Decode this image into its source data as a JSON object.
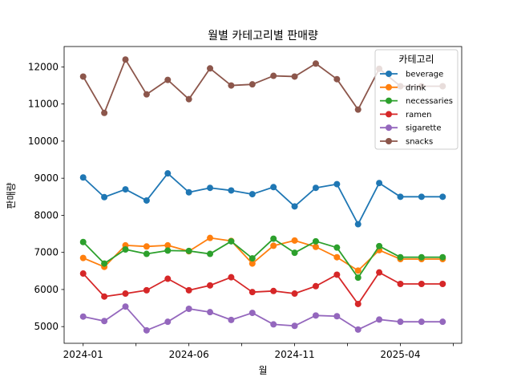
{
  "chart_data": {
    "type": "line",
    "title": "월별 카테고리별 판매량",
    "xlabel": "월",
    "ylabel": "판매량",
    "x": [
      "2024-01",
      "2024-02",
      "2024-03",
      "2024-04",
      "2024-05",
      "2024-06",
      "2024-07",
      "2024-08",
      "2024-09",
      "2024-10",
      "2024-11",
      "2024-12",
      "2025-01",
      "2025-02",
      "2025-03",
      "2025-04",
      "2025-05",
      "2025-06"
    ],
    "x_tick_labels": [
      "2024-01",
      "2024-06",
      "2024-11",
      "2025-04"
    ],
    "x_ticks_labeled_index": [
      0,
      5,
      10,
      15
    ],
    "x_minor_ticks_index": [
      0,
      2.5,
      5,
      7.5,
      10,
      12.5,
      15,
      17.5
    ],
    "xlim_index": [
      -0.9,
      17.9
    ],
    "ylim": [
      4550,
      12550
    ],
    "y_ticks": [
      5000,
      6000,
      7000,
      8000,
      9000,
      10000,
      11000,
      12000
    ],
    "grid": false,
    "legend": {
      "title": "카테고리",
      "placement": "top-right"
    },
    "series": [
      {
        "name": "beverage",
        "color": "#1f77b4",
        "values": [
          9020,
          8490,
          8700,
          8400,
          9130,
          8620,
          8740,
          8670,
          8570,
          8760,
          8240,
          8740,
          8840,
          7760,
          8870,
          8500,
          8500,
          8500
        ]
      },
      {
        "name": "drink",
        "color": "#ff7f0e",
        "values": [
          6850,
          6610,
          7190,
          7160,
          7190,
          7030,
          7390,
          7310,
          6700,
          7180,
          7320,
          7150,
          6870,
          6510,
          7060,
          6820,
          6820,
          6820
        ]
      },
      {
        "name": "necessaries",
        "color": "#2ca02c",
        "values": [
          7280,
          6700,
          7080,
          6960,
          7050,
          7040,
          6960,
          7300,
          6840,
          7370,
          6990,
          7300,
          7130,
          6320,
          7170,
          6870,
          6870,
          6870
        ]
      },
      {
        "name": "ramen",
        "color": "#d62728",
        "values": [
          6430,
          5810,
          5890,
          5980,
          6290,
          5980,
          6110,
          6330,
          5930,
          5960,
          5890,
          6090,
          6400,
          5610,
          6460,
          6150,
          6150,
          6150
        ]
      },
      {
        "name": "sigarette",
        "color": "#9467bd",
        "values": [
          5270,
          5150,
          5540,
          4900,
          5130,
          5480,
          5390,
          5180,
          5370,
          5060,
          5020,
          5300,
          5280,
          4920,
          5190,
          5130,
          5130,
          5130
        ]
      },
      {
        "name": "snacks",
        "color": "#8c564b",
        "values": [
          11740,
          10760,
          12200,
          11260,
          11650,
          11130,
          11960,
          11500,
          11530,
          11760,
          11740,
          12090,
          11670,
          10850,
          11950,
          11480,
          11480,
          11480
        ]
      }
    ]
  }
}
